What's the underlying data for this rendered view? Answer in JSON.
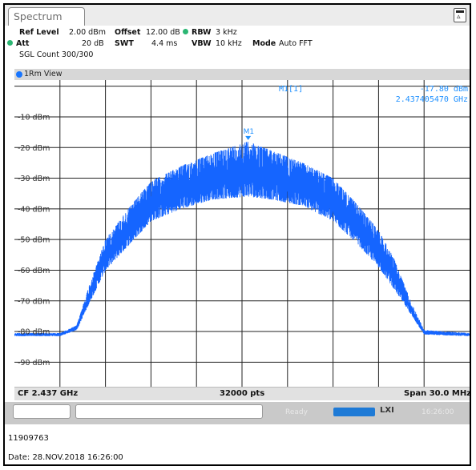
{
  "tab": {
    "title": "Spectrum",
    "icon": "instrument-icon"
  },
  "settings": {
    "ref_level_label": "Ref Level",
    "ref_level_value": "2.00 dBm",
    "offset_label": "Offset",
    "offset_value": "12.00 dB",
    "rbw_label": "RBW",
    "rbw_value": "3 kHz",
    "att_label": "Att",
    "att_value": "20 dB",
    "swt_label": "SWT",
    "swt_value": "4.4 ms",
    "vbw_label": "VBW",
    "vbw_value": "10 kHz",
    "mode_label": "Mode",
    "mode_value": "Auto FFT",
    "sgl_count": "SGL Count 300/300"
  },
  "trace": {
    "label": "1Rm View",
    "color": "#1565ff"
  },
  "marker": {
    "name": "M1[1]",
    "label": "M1",
    "level": "-17.80 dBm",
    "frequency": "2.437405470 GHz",
    "color": "#1e90ff"
  },
  "chart_data": {
    "type": "line",
    "ylabels": [
      "-10 dBm",
      "-20 dBm",
      "-30 dBm",
      "-40 dBm",
      "-50 dBm",
      "-60 dBm",
      "-70 dBm",
      "-80 dBm",
      "-90 dBm"
    ],
    "ylim": [
      -98,
      2
    ],
    "xlim_mhz": [
      2422,
      2452
    ],
    "grid": true,
    "series": [
      {
        "x_mhz": [
          2422,
          2425.0,
          2426.1,
          2427.0,
          2428.0,
          2429.5,
          2431.0,
          2433.0,
          2435.0,
          2437.4,
          2439.0,
          2441.0,
          2443.0,
          2444.5,
          2446.0,
          2447.0,
          2448.2,
          2449.0,
          2452
        ],
        "upper_dbm": [
          -80.5,
          -80.5,
          -78.0,
          -64.0,
          -50.0,
          -40.0,
          -31.0,
          -26.0,
          -22.0,
          -18.0,
          -21.0,
          -25.0,
          -30.0,
          -38.0,
          -47.0,
          -56.0,
          -71.0,
          -79.5,
          -80.5
        ],
        "lower_dbm": [
          -81.5,
          -81.5,
          -79.5,
          -70.0,
          -60.0,
          -52.0,
          -44.0,
          -40.0,
          -37.0,
          -36.0,
          -37.0,
          -39.0,
          -44.0,
          -51.0,
          -59.0,
          -66.0,
          -75.0,
          -81.0,
          -81.5
        ]
      }
    ]
  },
  "bottom": {
    "center_freq": "CF 2.437 GHz",
    "points": "32000 pts",
    "span": "Span 30.0 MHz"
  },
  "status": {
    "ready": "Ready",
    "lxi": "LXI",
    "time": "16:26:00"
  },
  "footer": {
    "id": "11909763",
    "date": "Date: 28.NOV.2018  16:26:00"
  }
}
